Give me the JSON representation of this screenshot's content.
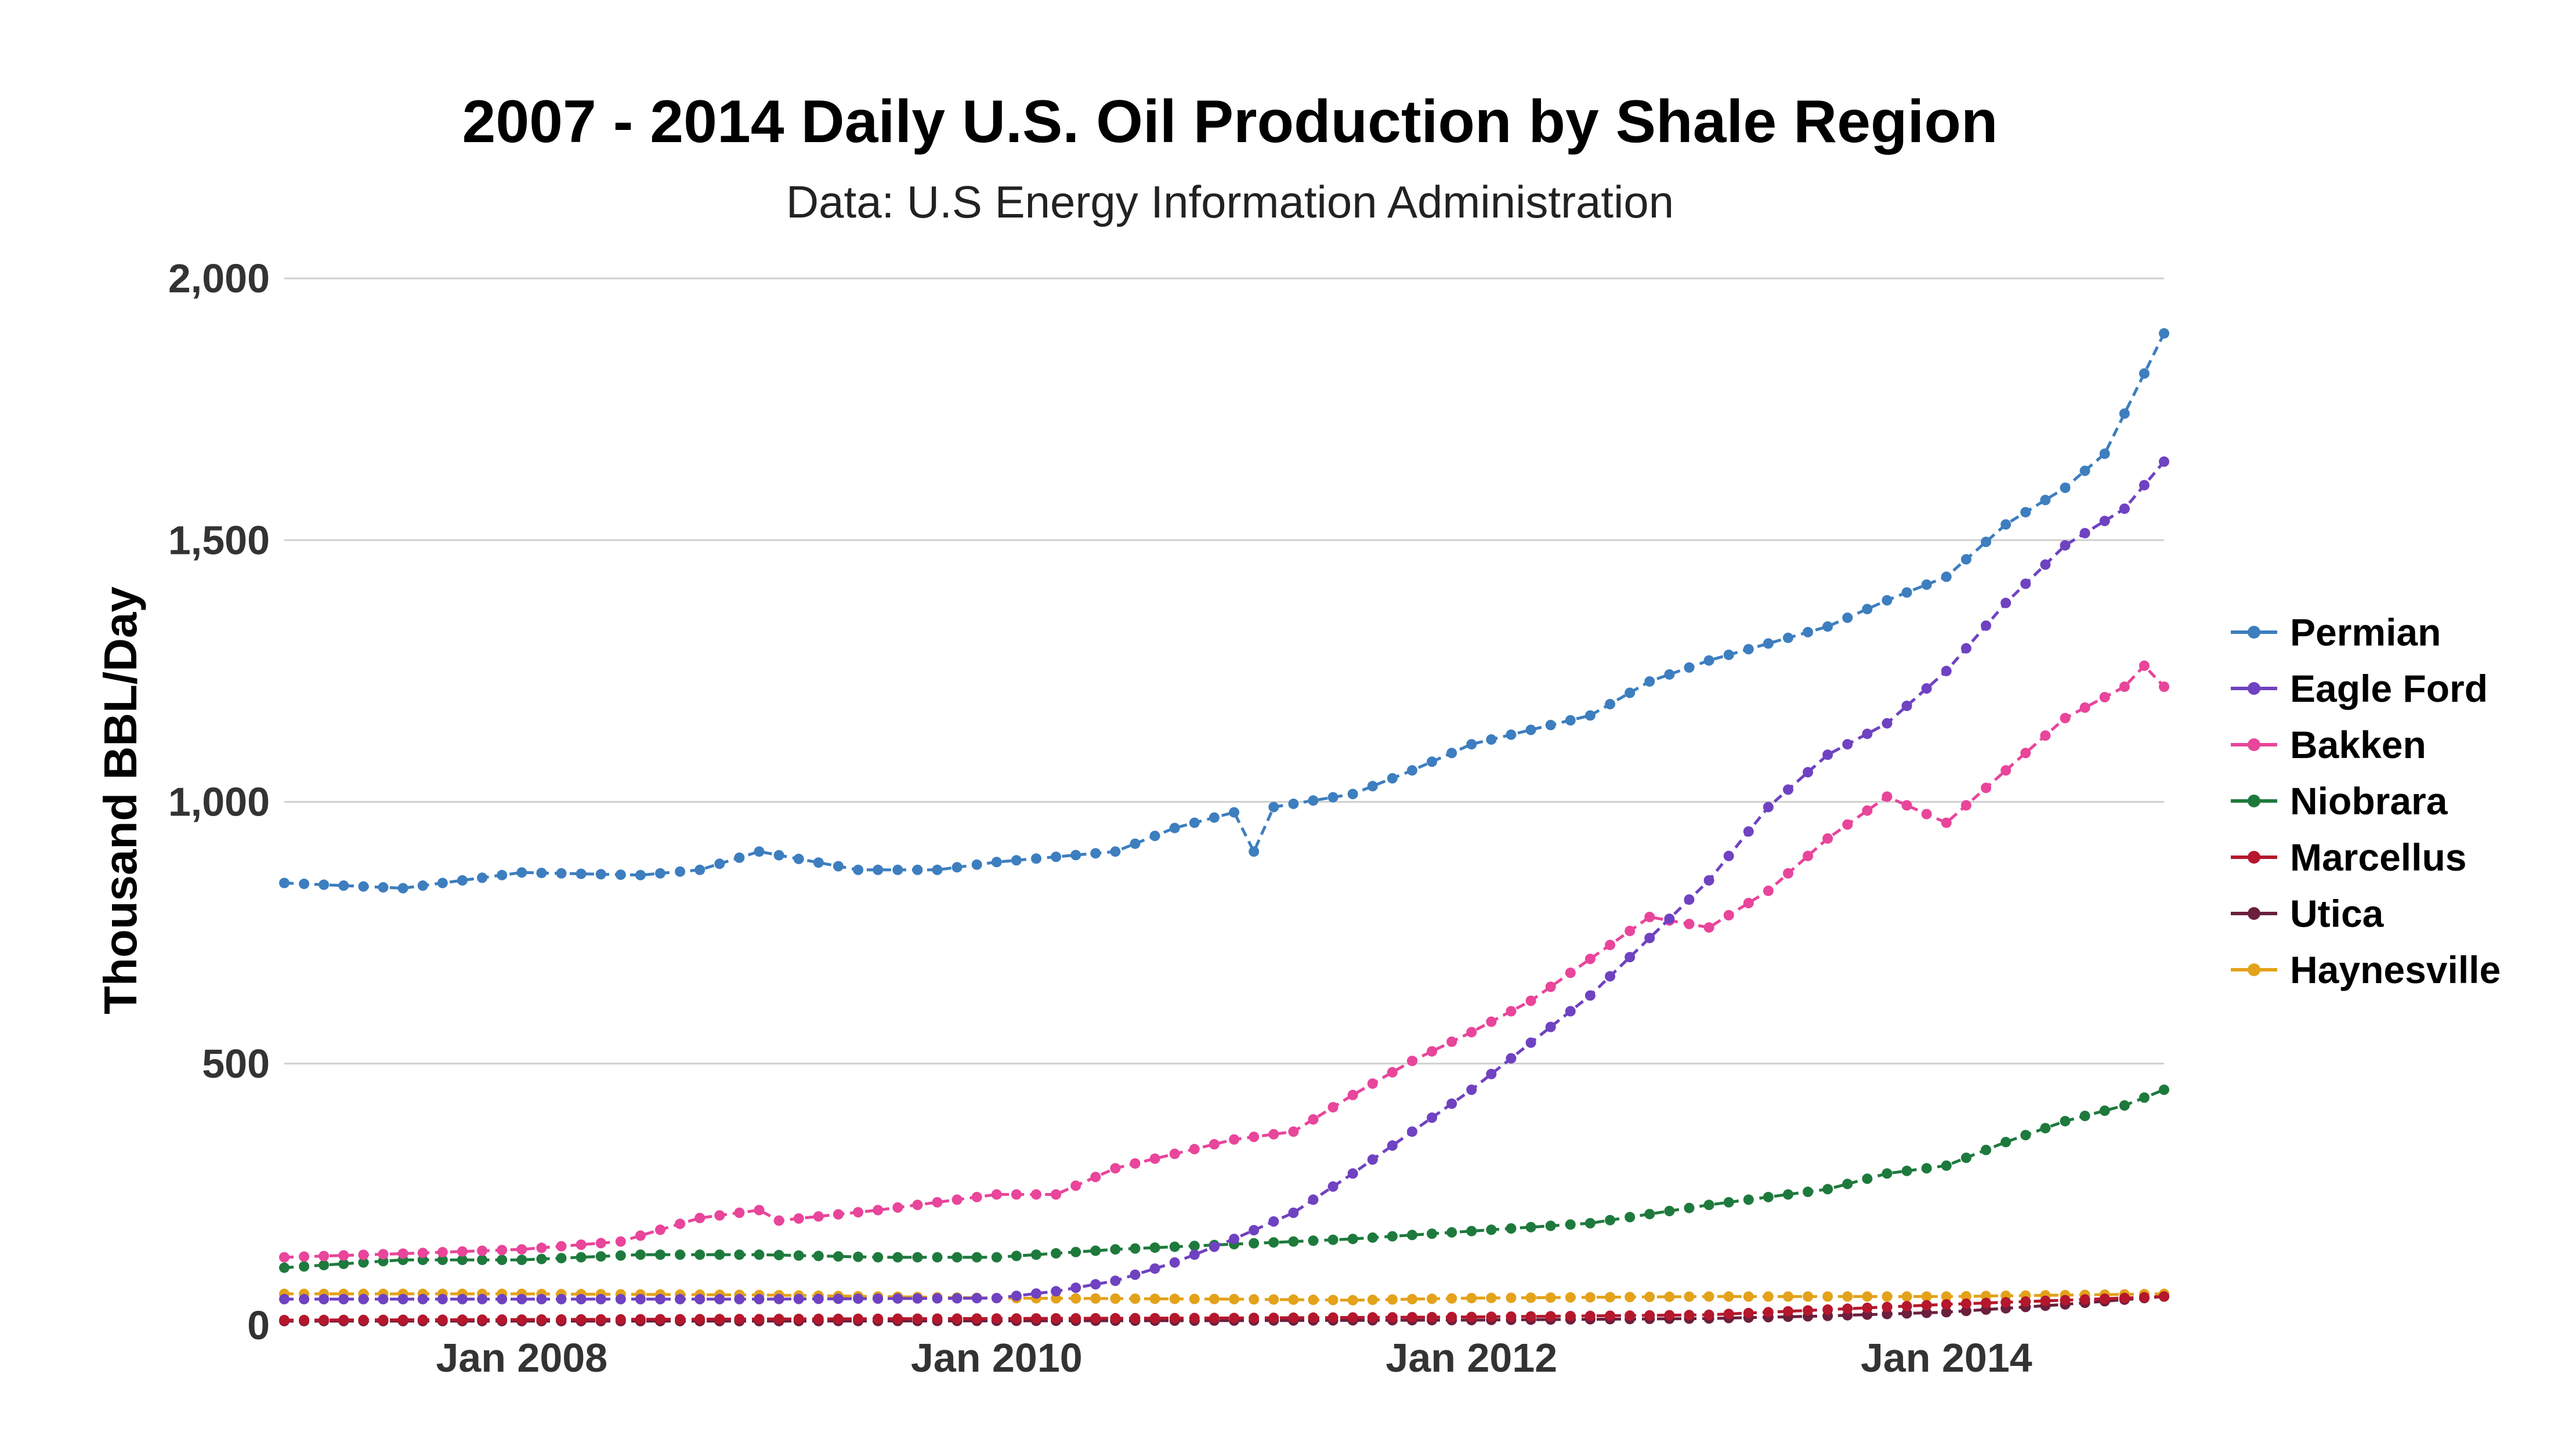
{
  "chart_data": {
    "type": "line",
    "title": "2007 - 2014 Daily U.S. Oil Production by Shale Region",
    "subtitle": "Data: U.S Energy Information Administration",
    "xlabel": "",
    "ylabel": "Thousand BBL/Day",
    "xlim": [
      "2007-01",
      "2014-12"
    ],
    "ylim": [
      0,
      2000
    ],
    "x_ticks": [
      "Jan 2008",
      "Jan 2010",
      "Jan 2012",
      "Jan 2014"
    ],
    "y_ticks": [
      "0",
      "500",
      "1,000",
      "1,500",
      "2,000"
    ],
    "grid": true,
    "legend_position": "right",
    "series": [
      {
        "name": "Permian",
        "color": "#3d7ebf",
        "points": [
          [
            "2007-01",
            845
          ],
          [
            "2007-07",
            835
          ],
          [
            "2008-01",
            865
          ],
          [
            "2008-07",
            860
          ],
          [
            "2008-10",
            870
          ],
          [
            "2009-01",
            905
          ],
          [
            "2009-06",
            870
          ],
          [
            "2009-10",
            870
          ],
          [
            "2010-01",
            885
          ],
          [
            "2010-07",
            905
          ],
          [
            "2010-10",
            950
          ],
          [
            "2011-01",
            980
          ],
          [
            "2011-02",
            905
          ],
          [
            "2011-03",
            990
          ],
          [
            "2011-07",
            1015
          ],
          [
            "2011-10",
            1060
          ],
          [
            "2012-01",
            1110
          ],
          [
            "2012-07",
            1165
          ],
          [
            "2012-10",
            1230
          ],
          [
            "2013-01",
            1270
          ],
          [
            "2013-07",
            1335
          ],
          [
            "2013-10",
            1385
          ],
          [
            "2014-01",
            1430
          ],
          [
            "2014-04",
            1530
          ],
          [
            "2014-07",
            1600
          ],
          [
            "2014-09",
            1665
          ],
          [
            "2014-12",
            1895
          ]
        ]
      },
      {
        "name": "Eagle Ford",
        "color": "#6f42c1",
        "points": [
          [
            "2007-01",
            50
          ],
          [
            "2008-01",
            50
          ],
          [
            "2009-01",
            50
          ],
          [
            "2010-01",
            52
          ],
          [
            "2010-04",
            65
          ],
          [
            "2010-07",
            85
          ],
          [
            "2010-10",
            120
          ],
          [
            "2011-01",
            165
          ],
          [
            "2011-04",
            215
          ],
          [
            "2011-07",
            290
          ],
          [
            "2011-10",
            370
          ],
          [
            "2012-01",
            450
          ],
          [
            "2012-04",
            540
          ],
          [
            "2012-07",
            630
          ],
          [
            "2012-10",
            740
          ],
          [
            "2013-01",
            850
          ],
          [
            "2013-04",
            990
          ],
          [
            "2013-07",
            1090
          ],
          [
            "2013-10",
            1150
          ],
          [
            "2014-01",
            1250
          ],
          [
            "2014-04",
            1380
          ],
          [
            "2014-07",
            1490
          ],
          [
            "2014-10",
            1560
          ],
          [
            "2014-12",
            1650
          ]
        ]
      },
      {
        "name": "Bakken",
        "color": "#e8459b",
        "points": [
          [
            "2007-01",
            130
          ],
          [
            "2007-07",
            137
          ],
          [
            "2008-01",
            145
          ],
          [
            "2008-06",
            160
          ],
          [
            "2008-10",
            205
          ],
          [
            "2009-01",
            220
          ],
          [
            "2009-02",
            200
          ],
          [
            "2009-07",
            220
          ],
          [
            "2010-01",
            250
          ],
          [
            "2010-04",
            250
          ],
          [
            "2010-07",
            300
          ],
          [
            "2011-01",
            355
          ],
          [
            "2011-04",
            370
          ],
          [
            "2011-07",
            440
          ],
          [
            "2011-10",
            505
          ],
          [
            "2012-01",
            560
          ],
          [
            "2012-04",
            620
          ],
          [
            "2012-07",
            700
          ],
          [
            "2012-10",
            780
          ],
          [
            "2013-01",
            760
          ],
          [
            "2013-04",
            830
          ],
          [
            "2013-07",
            930
          ],
          [
            "2013-10",
            1010
          ],
          [
            "2014-01",
            960
          ],
          [
            "2014-04",
            1060
          ],
          [
            "2014-07",
            1160
          ],
          [
            "2014-10",
            1220
          ],
          [
            "2014-11",
            1260
          ],
          [
            "2014-12",
            1220
          ]
        ]
      },
      {
        "name": "Niobrara",
        "color": "#1e7a3c",
        "points": [
          [
            "2007-01",
            110
          ],
          [
            "2007-07",
            125
          ],
          [
            "2008-01",
            125
          ],
          [
            "2008-07",
            135
          ],
          [
            "2009-01",
            135
          ],
          [
            "2009-07",
            130
          ],
          [
            "2010-01",
            130
          ],
          [
            "2010-07",
            145
          ],
          [
            "2011-01",
            155
          ],
          [
            "2011-07",
            165
          ],
          [
            "2012-01",
            180
          ],
          [
            "2012-07",
            195
          ],
          [
            "2013-01",
            230
          ],
          [
            "2013-07",
            260
          ],
          [
            "2013-10",
            290
          ],
          [
            "2014-01",
            305
          ],
          [
            "2014-04",
            350
          ],
          [
            "2014-07",
            390
          ],
          [
            "2014-10",
            420
          ],
          [
            "2014-12",
            450
          ]
        ]
      },
      {
        "name": "Marcellus",
        "color": "#b5172c",
        "points": [
          [
            "2007-01",
            10
          ],
          [
            "2009-01",
            12
          ],
          [
            "2011-01",
            14
          ],
          [
            "2012-01",
            16
          ],
          [
            "2013-01",
            20
          ],
          [
            "2013-07",
            30
          ],
          [
            "2014-01",
            40
          ],
          [
            "2014-07",
            48
          ],
          [
            "2014-12",
            55
          ]
        ]
      },
      {
        "name": "Utica",
        "color": "#6b1f3d",
        "points": [
          [
            "2007-01",
            8
          ],
          [
            "2009-01",
            8
          ],
          [
            "2011-01",
            9
          ],
          [
            "2012-01",
            10
          ],
          [
            "2013-01",
            13
          ],
          [
            "2013-07",
            18
          ],
          [
            "2014-01",
            25
          ],
          [
            "2014-07",
            40
          ],
          [
            "2014-12",
            55
          ]
        ]
      },
      {
        "name": "Haynesville",
        "color": "#e3a21a",
        "points": [
          [
            "2007-01",
            60
          ],
          [
            "2008-01",
            60
          ],
          [
            "2009-01",
            58
          ],
          [
            "2010-01",
            52
          ],
          [
            "2011-01",
            50
          ],
          [
            "2011-07",
            48
          ],
          [
            "2012-01",
            52
          ],
          [
            "2013-01",
            55
          ],
          [
            "2014-01",
            55
          ],
          [
            "2014-12",
            60
          ]
        ]
      }
    ]
  }
}
